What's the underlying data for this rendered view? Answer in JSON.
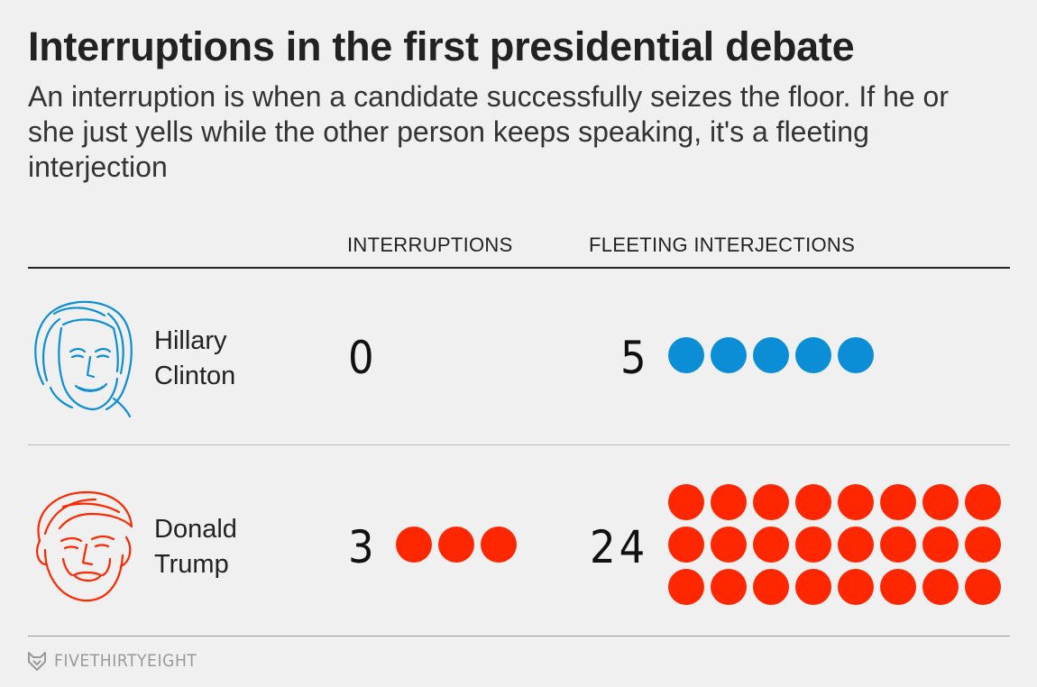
{
  "header": {
    "title": "Interruptions in the first presidential debate",
    "subtitle": "An interruption is when a candidate successfully seizes the floor. If he or she just yells while the other person keeps speaking, it's a fleeting interjection"
  },
  "footer": {
    "brand": "FIVETHIRTYEIGHT"
  },
  "chart_data": {
    "type": "table",
    "columns": [
      "INTERRUPTIONS",
      "FLEETING INTERJECTIONS"
    ],
    "rows": [
      {
        "name_line1": "Hillary",
        "name_line2": "Clinton",
        "interruptions": 0,
        "interruptions_label": "0",
        "fleeting": 5,
        "fleeting_label": "5",
        "color": "#0c8ed6",
        "icon": "hillary-clinton-face-icon"
      },
      {
        "name_line1": "Donald",
        "name_line2": "Trump",
        "interruptions": 3,
        "interruptions_label": "3",
        "fleeting": 24,
        "fleeting_label": "24",
        "color": "#ff2700",
        "icon": "donald-trump-face-icon"
      }
    ]
  }
}
